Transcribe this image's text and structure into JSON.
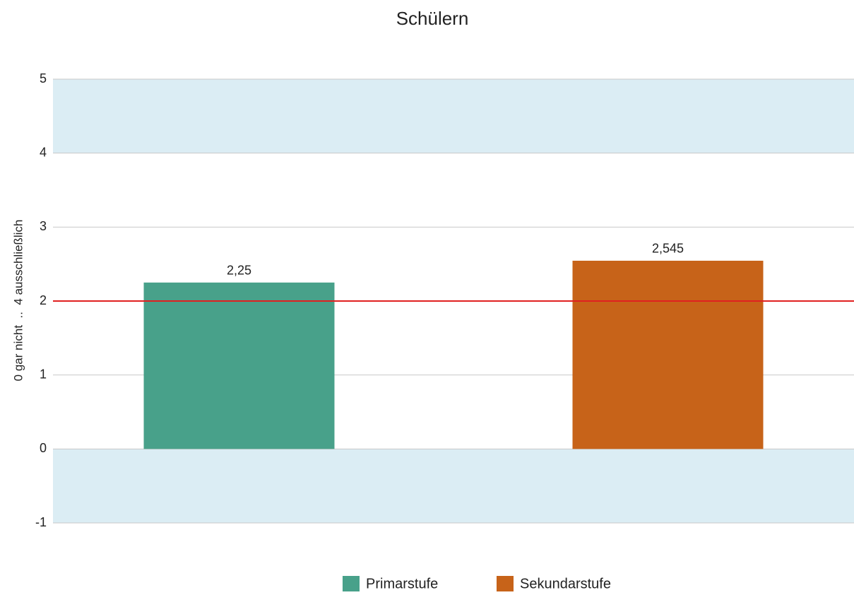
{
  "chart_data": {
    "type": "bar",
    "title": "Schülern",
    "y_axis_label": "0 gar nicht  ..  4 ausschließlich",
    "categories": [
      null
    ],
    "series": [
      {
        "name": "Primarstufe",
        "color": "#48a18a",
        "values": [
          2.25
        ],
        "value_labels": [
          "2,25"
        ]
      },
      {
        "name": "Sekundarstufe",
        "color": "#c76319",
        "values": [
          2.545
        ],
        "value_labels": [
          "2,545"
        ]
      }
    ],
    "ylim": [
      -1,
      5
    ],
    "yticks": [
      -1,
      0,
      1,
      2,
      3,
      4,
      5
    ],
    "grid": true,
    "bands": [
      {
        "from": 4,
        "to": 5,
        "color": "#dbedf4"
      },
      {
        "from": -1,
        "to": 0,
        "color": "#dbedf4"
      }
    ],
    "reference_line": {
      "value": 2,
      "color": "#e02020"
    },
    "legend": "bottom"
  }
}
